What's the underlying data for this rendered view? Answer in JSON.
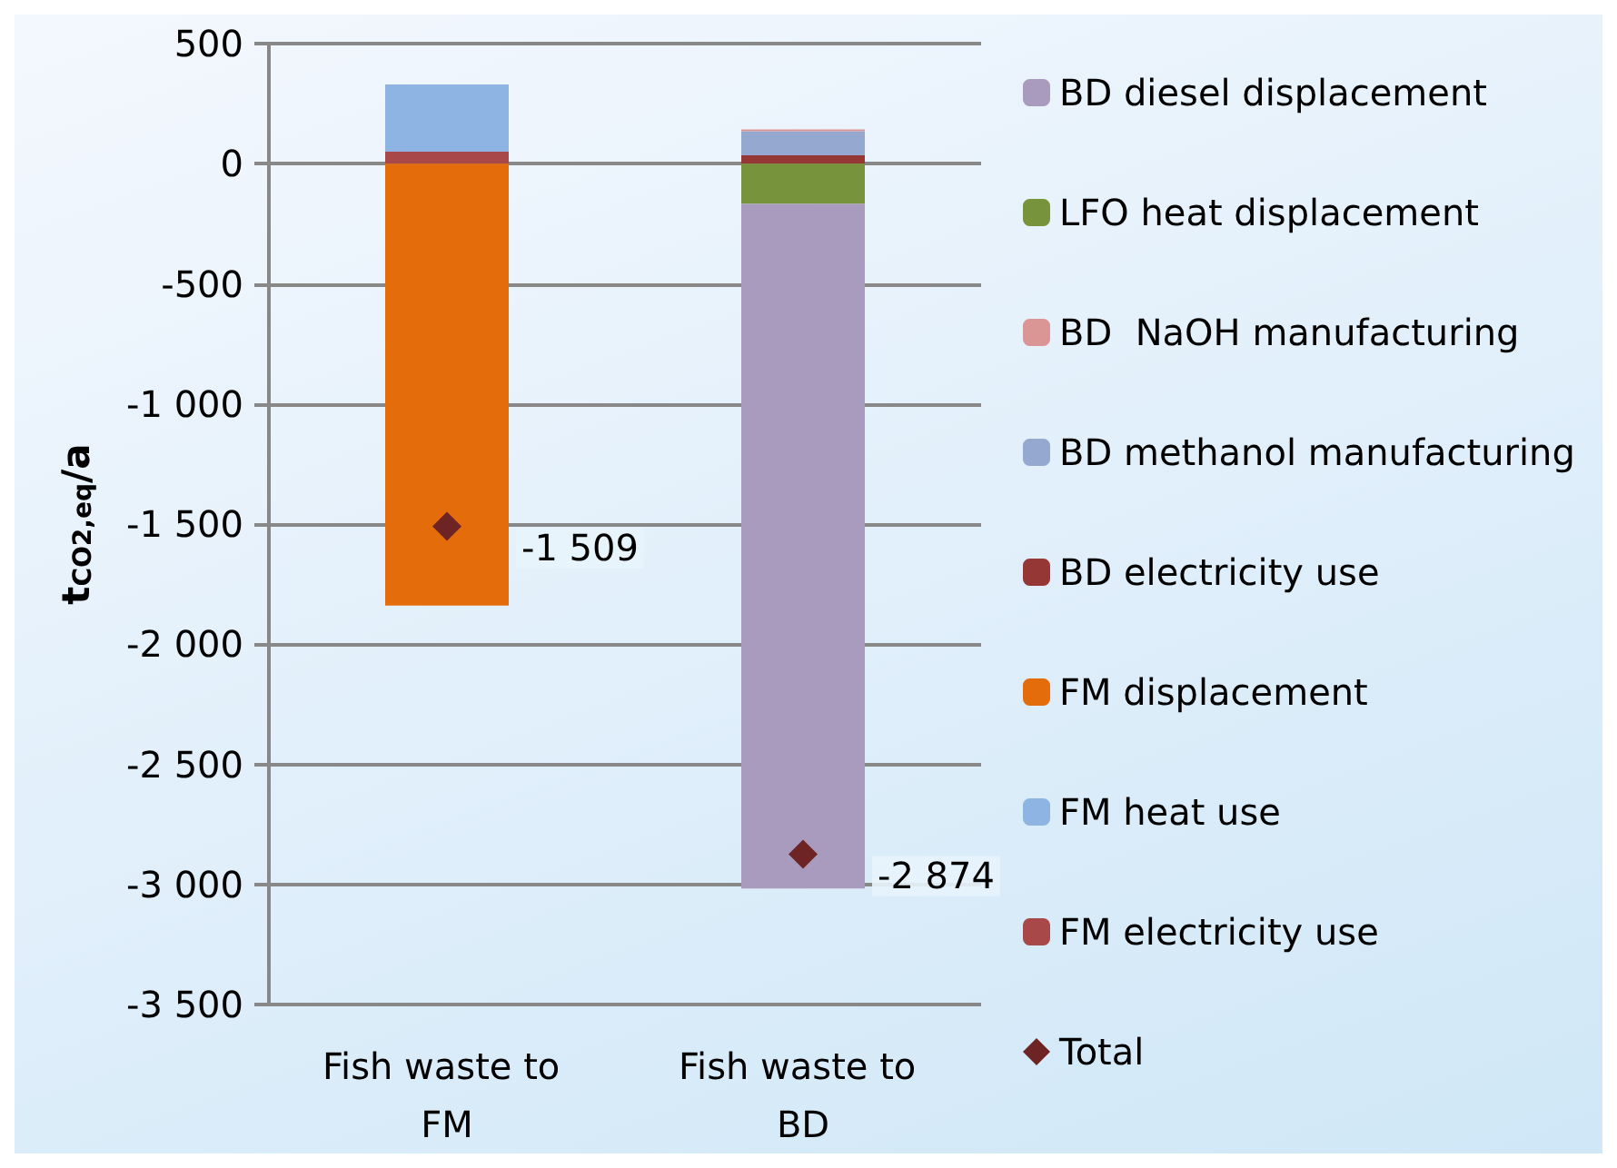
{
  "chart_data": {
    "type": "bar",
    "stacked": true,
    "ylabel": "t$_{CO2,eq}$/a",
    "categories": [
      "Fish waste to FM",
      "Fish waste to BD"
    ],
    "series": [
      {
        "name": "FM electricity use",
        "color": "#a84848",
        "values": [
          50,
          null
        ]
      },
      {
        "name": "FM heat use",
        "color": "#8eb4e3",
        "values": [
          280,
          null
        ]
      },
      {
        "name": "FM displacement",
        "color": "#e46c0a",
        "values": [
          -1839,
          null
        ]
      },
      {
        "name": "BD electricity use",
        "color": "#953735",
        "values": [
          null,
          35
        ]
      },
      {
        "name": "BD methanol manufacturing",
        "color": "#95a9d0",
        "values": [
          null,
          100
        ]
      },
      {
        "name": "BD  NaOH manufacturing",
        "color": "#d99694",
        "values": [
          null,
          8
        ]
      },
      {
        "name": "LFO heat displacement",
        "color": "#77933c",
        "values": [
          null,
          -167
        ]
      },
      {
        "name": "BD diesel displacement",
        "color": "#a99bbd",
        "values": [
          null,
          -2850
        ]
      },
      {
        "name": "Total",
        "type": "scatter",
        "marker": "diamond",
        "color": "#6e2424",
        "x": [
          "Fish waste to FM",
          "Fish waste to BD"
        ],
        "values": [
          -1509,
          -2874
        ],
        "value_labels": [
          "-1 509",
          "-2 874"
        ]
      }
    ],
    "ylim": [
      -3500,
      500
    ],
    "yticks": [
      {
        "value": 500,
        "label": "500"
      },
      {
        "value": 0,
        "label": "0"
      },
      {
        "value": -500,
        "label": "-500"
      },
      {
        "value": -1000,
        "label": "-1 000"
      },
      {
        "value": -1500,
        "label": "-1 500"
      },
      {
        "value": -2000,
        "label": "-2 000"
      },
      {
        "value": -2500,
        "label": "-2 500"
      },
      {
        "value": -3000,
        "label": "-3 000"
      },
      {
        "value": -3500,
        "label": "-3 500"
      }
    ],
    "grid": "y",
    "legend": "right"
  }
}
